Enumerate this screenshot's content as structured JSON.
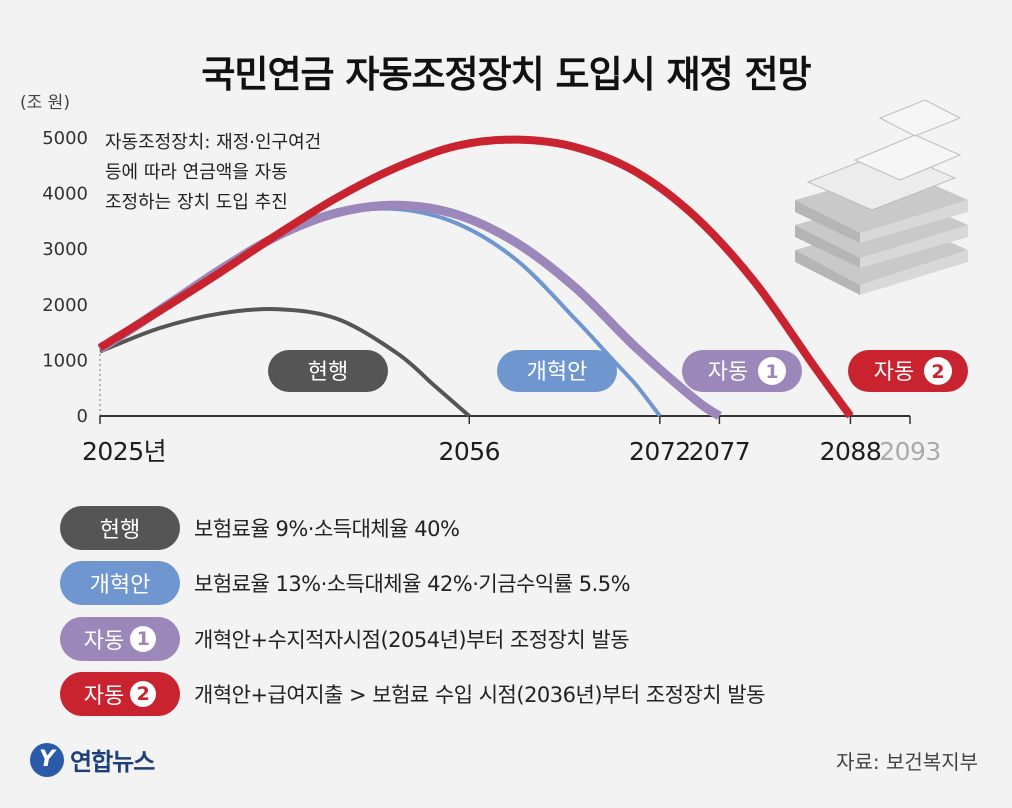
{
  "title": "국민연금 자동조정장치 도입시 재정 전망",
  "chart_data": {
    "type": "line",
    "y_unit_label": "(조 원)",
    "yticks": [
      0,
      1000,
      2000,
      3000,
      4000,
      5000
    ],
    "ylim": [
      0,
      5000
    ],
    "xlim": [
      2025,
      2093
    ],
    "x_tick_labels": [
      {
        "value": 2025,
        "label": "2025년",
        "color": "#1e1e1e"
      },
      {
        "value": 2056,
        "label": "2056",
        "color": "#1e1e1e"
      },
      {
        "value": 2072,
        "label": "2072",
        "color": "#1e1e1e"
      },
      {
        "value": 2077,
        "label": "2077",
        "color": "#1e1e1e"
      },
      {
        "value": 2088,
        "label": "2088",
        "color": "#1e1e1e"
      },
      {
        "value": 2093,
        "label": "2093",
        "color": "#aaaaaa"
      }
    ],
    "annotation": [
      "자동조정장치: 재정·인구여건",
      "등에 따라 연금액을 자동",
      "조정하는 장치 도입 추진"
    ],
    "grid": false,
    "series": [
      {
        "name": "현행",
        "color": "#555555",
        "x": [
          2025,
          2030,
          2035,
          2040,
          2045,
          2050,
          2053,
          2056
        ],
        "values": [
          1160,
          1580,
          1840,
          1920,
          1740,
          1120,
          560,
          0
        ]
      },
      {
        "name": "개혁안",
        "color": "#6f96cf",
        "x": [
          2025,
          2030,
          2035,
          2040,
          2045,
          2050,
          2055,
          2060,
          2065,
          2068,
          2070,
          2072
        ],
        "values": [
          1210,
          1960,
          2650,
          3280,
          3640,
          3720,
          3460,
          2800,
          1720,
          1020,
          560,
          0
        ]
      },
      {
        "name": "자동 ①",
        "color": "#9b87b9",
        "x": [
          2025,
          2030,
          2035,
          2040,
          2045,
          2050,
          2055,
          2060,
          2065,
          2070,
          2075,
          2077
        ],
        "values": [
          1200,
          1900,
          2620,
          3250,
          3660,
          3790,
          3620,
          3110,
          2290,
          1230,
          290,
          0
        ]
      },
      {
        "name": "자동 ②",
        "color": "#c8232f",
        "x": [
          2025,
          2030,
          2035,
          2040,
          2045,
          2050,
          2055,
          2060,
          2065,
          2070,
          2075,
          2080,
          2085,
          2088
        ],
        "values": [
          1230,
          1890,
          2570,
          3280,
          3940,
          4480,
          4860,
          4970,
          4830,
          4390,
          3580,
          2400,
          880,
          0
        ]
      }
    ],
    "series_tags": [
      {
        "label": "현행",
        "number": "",
        "color": "#555555"
      },
      {
        "label": "개혁안",
        "number": "",
        "color": "#6f96cf"
      },
      {
        "label": "자동",
        "number": "1",
        "color": "#9b87b9"
      },
      {
        "label": "자동",
        "number": "2",
        "color": "#c8232f"
      }
    ]
  },
  "legend": [
    {
      "label": "현행",
      "number": "",
      "color": "#555555",
      "desc": "보험료율 9%·소득대체율 40%"
    },
    {
      "label": "개혁안",
      "number": "",
      "color": "#6f96cf",
      "desc": "보험료율 13%·소득대체율 42%·기금수익률 5.5%"
    },
    {
      "label": "자동",
      "number": "1",
      "color": "#9b87b9",
      "desc": "개혁안+수지적자시점(2054년)부터 조정장치 발동"
    },
    {
      "label": "자동",
      "number": "2",
      "color": "#c8232f",
      "desc": "개혁안+급여지출 > 보험료 수입 시점(2036년)부터 조정장치 발동"
    }
  ],
  "footer": {
    "logo_text": "연합뉴스",
    "logo_mark": "Y",
    "source": "자료: 보건복지부"
  },
  "icons": {
    "decor": "money-stack-icon",
    "logo": "yonhap-logo-icon"
  }
}
